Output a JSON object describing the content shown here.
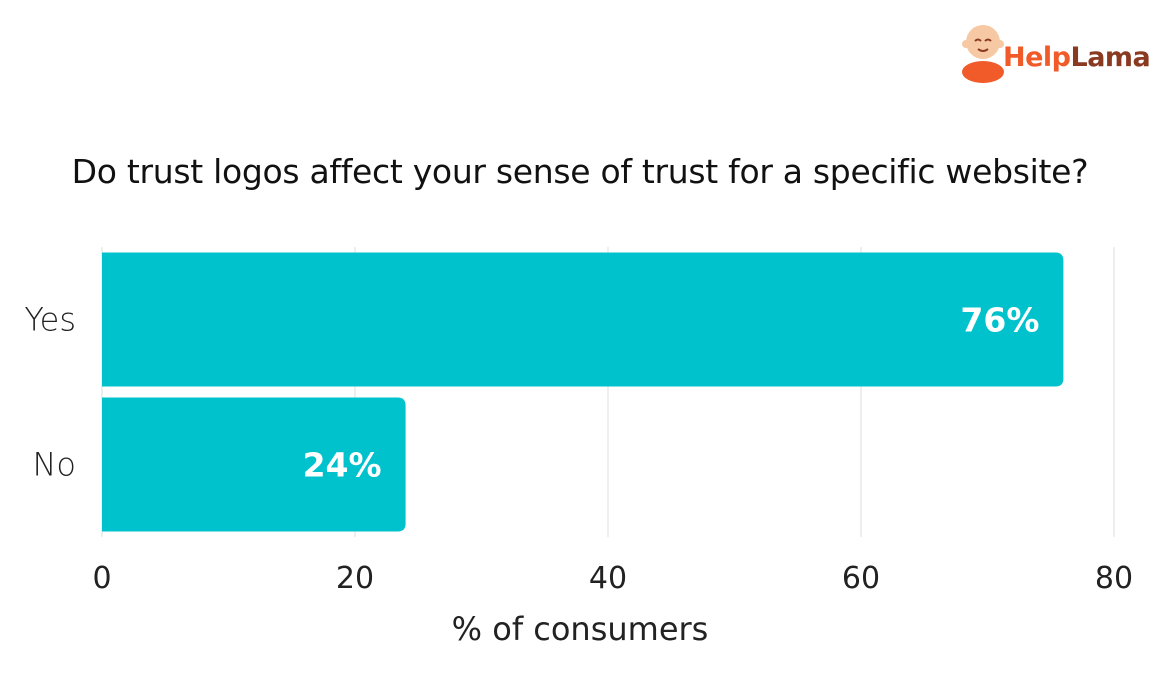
{
  "brand": {
    "part1": "Help",
    "part2": "Lama",
    "logo_icon": "monk-mascot-icon"
  },
  "colors": {
    "bar": "#00c2cc",
    "brand_orange": "#f15a29",
    "brand_brown": "#8b3a22",
    "grid": "#dddddd"
  },
  "chart_data": {
    "type": "bar",
    "orientation": "horizontal",
    "title": "Do trust logos affect your sense of trust for a specific website?",
    "categories": [
      "Yes",
      "No"
    ],
    "values": [
      76,
      24
    ],
    "data_labels": [
      "76%",
      "24%"
    ],
    "xlabel": "% of consumers",
    "ylabel": "",
    "xlim": [
      0,
      80
    ],
    "xticks": [
      "0",
      "20",
      "40",
      "60",
      "80"
    ],
    "grid": true,
    "legend": "none"
  }
}
